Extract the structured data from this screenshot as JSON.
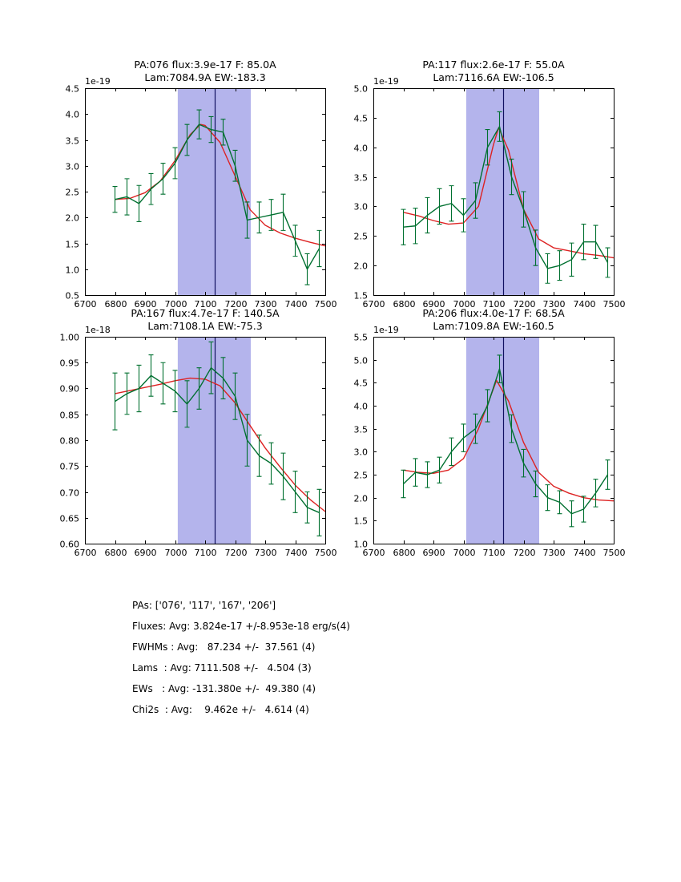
{
  "figure": {
    "background": "#ffffff",
    "band_color": "#b4b4ec",
    "vline_color": "#101060",
    "data_color": "#007030",
    "fit_color": "#dd2222",
    "axis_color": "#000000"
  },
  "summary": {
    "lines": [
      "PAs: ['076', '117', '167', '206']",
      "Fluxes: Avg: 3.824e-17 +/-8.953e-18 erg/s(4)",
      "FWHMs : Avg:   87.234 +/-  37.561 (4)",
      "Lams  : Avg: 7111.508 +/-   4.504 (3)",
      "EWs   : Avg: -131.380e +/-  49.380 (4)",
      "Chi2s  : Avg:    9.462e +/-   4.614 (4)"
    ]
  },
  "chart_data": [
    {
      "type": "line",
      "title_line1": "PA:076 flux:3.9e-17 F: 85.0A",
      "title_line2": "Lam:7084.9A EW:-183.3",
      "offset_label": "1e-19",
      "xlim": [
        6700,
        7500
      ],
      "ylim": [
        0.5,
        4.5
      ],
      "xticks": [
        6700,
        6800,
        6900,
        7000,
        7100,
        7200,
        7300,
        7400,
        7500
      ],
      "yticks": [
        0.5,
        1.0,
        1.5,
        2.0,
        2.5,
        3.0,
        3.5,
        4.0,
        4.5
      ],
      "ytick_decimals": 1,
      "band": [
        7009,
        7252
      ],
      "vline": 7132,
      "x": [
        6800,
        6840,
        6880,
        6920,
        6960,
        7000,
        7040,
        7080,
        7120,
        7160,
        7200,
        7240,
        7280,
        7320,
        7360,
        7400,
        7440,
        7480
      ],
      "y": [
        2.35,
        2.4,
        2.27,
        2.55,
        2.75,
        3.05,
        3.5,
        3.8,
        3.7,
        3.65,
        3.0,
        1.95,
        2.0,
        2.05,
        2.1,
        1.55,
        1.0,
        1.4
      ],
      "yerr": [
        0.25,
        0.35,
        0.35,
        0.3,
        0.3,
        0.3,
        0.3,
        0.28,
        0.25,
        0.25,
        0.3,
        0.35,
        0.3,
        0.3,
        0.35,
        0.3,
        0.3,
        0.35
      ],
      "fit_x": [
        6800,
        6850,
        6900,
        6950,
        7000,
        7050,
        7085,
        7100,
        7150,
        7200,
        7250,
        7300,
        7350,
        7400,
        7450,
        7500
      ],
      "fit_y": [
        2.35,
        2.37,
        2.48,
        2.7,
        3.1,
        3.6,
        3.8,
        3.78,
        3.45,
        2.8,
        2.15,
        1.85,
        1.7,
        1.6,
        1.52,
        1.45
      ]
    },
    {
      "type": "line",
      "title_line1": "PA:117 flux:2.6e-17 F: 55.0A",
      "title_line2": "Lam:7116.6A EW:-106.5",
      "offset_label": "1e-19",
      "xlim": [
        6700,
        7500
      ],
      "ylim": [
        1.5,
        5.0
      ],
      "xticks": [
        6700,
        6800,
        6900,
        7000,
        7100,
        7200,
        7300,
        7400,
        7500
      ],
      "yticks": [
        1.5,
        2.0,
        2.5,
        3.0,
        3.5,
        4.0,
        4.5,
        5.0
      ],
      "ytick_decimals": 1,
      "band": [
        7009,
        7252
      ],
      "vline": 7132,
      "x": [
        6800,
        6840,
        6880,
        6920,
        6960,
        7000,
        7040,
        7080,
        7120,
        7160,
        7200,
        7240,
        7280,
        7320,
        7360,
        7400,
        7440,
        7480
      ],
      "y": [
        2.65,
        2.67,
        2.85,
        3.0,
        3.05,
        2.85,
        3.1,
        4.0,
        4.35,
        3.5,
        2.95,
        2.3,
        1.95,
        2.0,
        2.1,
        2.4,
        2.4,
        2.05
      ],
      "yerr": [
        0.3,
        0.3,
        0.3,
        0.3,
        0.3,
        0.28,
        0.3,
        0.3,
        0.25,
        0.3,
        0.3,
        0.3,
        0.25,
        0.25,
        0.28,
        0.3,
        0.28,
        0.25
      ],
      "fit_x": [
        6800,
        6850,
        6900,
        6950,
        7000,
        7050,
        7100,
        7117,
        7150,
        7200,
        7250,
        7300,
        7350,
        7400,
        7450,
        7500
      ],
      "fit_y": [
        2.9,
        2.84,
        2.76,
        2.7,
        2.72,
        3.0,
        4.05,
        4.33,
        3.95,
        2.95,
        2.45,
        2.3,
        2.25,
        2.2,
        2.17,
        2.13
      ]
    },
    {
      "type": "line",
      "title_line1": "PA:167 flux:4.7e-17 F: 140.5A",
      "title_line2": "Lam:7108.1A EW:-75.3",
      "offset_label": "1e-18",
      "xlim": [
        6700,
        7500
      ],
      "ylim": [
        0.6,
        1.0
      ],
      "xticks": [
        6700,
        6800,
        6900,
        7000,
        7100,
        7200,
        7300,
        7400,
        7500
      ],
      "yticks": [
        0.6,
        0.65,
        0.7,
        0.75,
        0.8,
        0.85,
        0.9,
        0.95,
        1.0
      ],
      "ytick_decimals": 2,
      "band": [
        7009,
        7252
      ],
      "vline": 7132,
      "x": [
        6800,
        6840,
        6880,
        6920,
        6960,
        7000,
        7040,
        7080,
        7120,
        7160,
        7200,
        7240,
        7280,
        7320,
        7360,
        7400,
        7440,
        7480
      ],
      "y": [
        0.875,
        0.89,
        0.9,
        0.925,
        0.91,
        0.895,
        0.87,
        0.9,
        0.94,
        0.92,
        0.885,
        0.8,
        0.77,
        0.755,
        0.73,
        0.7,
        0.67,
        0.66
      ],
      "yerr": [
        0.055,
        0.04,
        0.045,
        0.04,
        0.04,
        0.04,
        0.045,
        0.04,
        0.05,
        0.04,
        0.045,
        0.05,
        0.04,
        0.04,
        0.045,
        0.04,
        0.03,
        0.045
      ],
      "fit_x": [
        6800,
        6850,
        6900,
        6950,
        7000,
        7050,
        7100,
        7150,
        7200,
        7250,
        7300,
        7350,
        7400,
        7450,
        7500
      ],
      "fit_y": [
        0.89,
        0.896,
        0.902,
        0.908,
        0.915,
        0.92,
        0.918,
        0.905,
        0.872,
        0.828,
        0.785,
        0.748,
        0.713,
        0.685,
        0.662
      ]
    },
    {
      "type": "line",
      "title_line1": "PA:206 flux:4.0e-17 F: 68.5A",
      "title_line2": "Lam:7109.8A EW:-160.5",
      "offset_label": "1e-19",
      "xlim": [
        6700,
        7500
      ],
      "ylim": [
        1.0,
        5.5
      ],
      "xticks": [
        6700,
        6800,
        6900,
        7000,
        7100,
        7200,
        7300,
        7400,
        7500
      ],
      "yticks": [
        1.0,
        1.5,
        2.0,
        2.5,
        3.0,
        3.5,
        4.0,
        4.5,
        5.0,
        5.5
      ],
      "ytick_decimals": 1,
      "band": [
        7009,
        7252
      ],
      "vline": 7132,
      "x": [
        6800,
        6840,
        6880,
        6920,
        6960,
        7000,
        7040,
        7080,
        7120,
        7160,
        7200,
        7240,
        7280,
        7320,
        7360,
        7400,
        7440,
        7480
      ],
      "y": [
        2.3,
        2.55,
        2.5,
        2.6,
        3.0,
        3.3,
        3.5,
        4.0,
        4.8,
        3.5,
        2.75,
        2.3,
        2.0,
        1.9,
        1.65,
        1.75,
        2.1,
        2.5
      ],
      "yerr": [
        0.3,
        0.3,
        0.28,
        0.28,
        0.3,
        0.3,
        0.32,
        0.35,
        0.3,
        0.3,
        0.3,
        0.28,
        0.28,
        0.25,
        0.28,
        0.28,
        0.3,
        0.32
      ],
      "fit_x": [
        6800,
        6850,
        6900,
        6950,
        7000,
        7050,
        7110,
        7150,
        7200,
        7250,
        7300,
        7350,
        7400,
        7450,
        7500
      ],
      "fit_y": [
        2.6,
        2.55,
        2.53,
        2.6,
        2.85,
        3.5,
        4.55,
        4.1,
        3.2,
        2.55,
        2.25,
        2.1,
        2.0,
        1.95,
        1.93
      ]
    }
  ]
}
